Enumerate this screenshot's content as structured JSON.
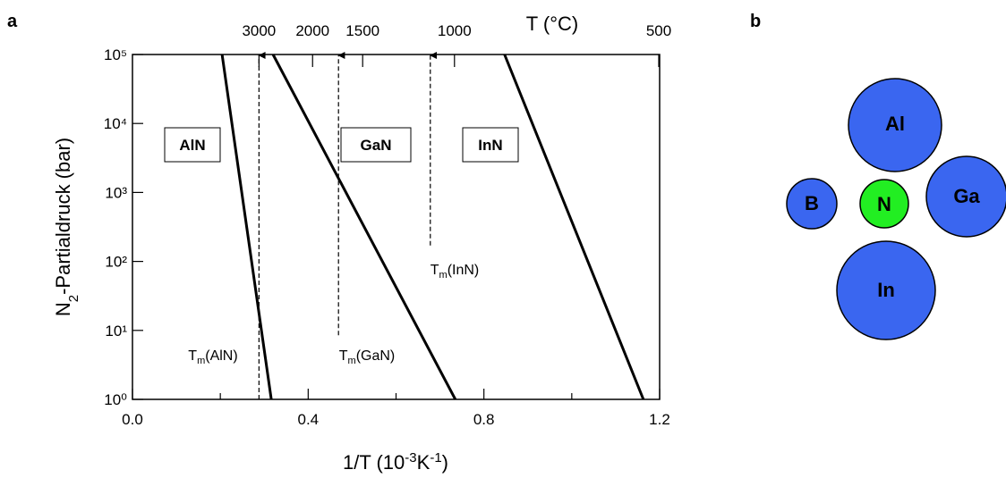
{
  "chart_data": {
    "type": "line",
    "panel_label": "a",
    "xlabel": [
      {
        "text": "1/T   (10"
      },
      {
        "sup": "-3"
      },
      {
        "text": "K"
      },
      {
        "sup": "-1"
      },
      {
        "text": ")"
      }
    ],
    "ylabel": [
      {
        "text": "N"
      },
      {
        "sub": "2"
      },
      {
        "text": "-Partialdruck  (bar)"
      }
    ],
    "x2label": "T   (°C)",
    "xlim": [
      0,
      1.2
    ],
    "xticks": [
      {
        "value": 0,
        "label": "0.0"
      },
      0.4,
      0.8,
      1.2
    ],
    "xminorticks": [
      0.2,
      0.6,
      1.0
    ],
    "x2ticks": [
      {
        "value": 0.288,
        "label": "3000"
      },
      {
        "value": 0.41,
        "label": "2000"
      },
      {
        "value": 0.524,
        "label": "1500"
      },
      {
        "value": 0.733,
        "label": "1000"
      },
      {
        "value": 1.198,
        "label": "500"
      }
    ],
    "ylim": [
      1,
      100000
    ],
    "log_y": true,
    "yticks": [
      {
        "value": 1,
        "label": "10⁰"
      },
      {
        "value": 10,
        "label": "10¹"
      },
      {
        "value": 100,
        "label": "10²"
      },
      {
        "value": 1000,
        "label": "10³"
      },
      {
        "value": 10000,
        "label": "10⁴"
      },
      {
        "value": 100000,
        "label": "10⁵"
      }
    ],
    "color": "#000000",
    "series": [
      {
        "name": "AlN",
        "x": [
          0.204,
          0.316
        ],
        "values": [
          100000,
          1
        ]
      },
      {
        "name": "GaN",
        "x": [
          0.32,
          0.735
        ],
        "values": [
          100000,
          1
        ]
      },
      {
        "name": "InN",
        "x": [
          0.847,
          1.163
        ],
        "values": [
          100000,
          1
        ]
      }
    ],
    "melting_arrows": [
      {
        "x": 0.288,
        "from": 1,
        "label": {
          "main": "T",
          "sub": "m",
          "rest": "(AlN)"
        }
      },
      {
        "x": 0.469,
        "from": 8.5,
        "label": {
          "main": "T",
          "sub": "m",
          "rest": "(GaN)"
        }
      },
      {
        "x": 0.678,
        "from": 170,
        "label": {
          "main": "T",
          "sub": "m",
          "rest": "(InN)"
        }
      }
    ]
  },
  "panel_b": {
    "label": "b",
    "atoms": [
      "Al",
      "B",
      "N",
      "Ga",
      "In"
    ]
  }
}
